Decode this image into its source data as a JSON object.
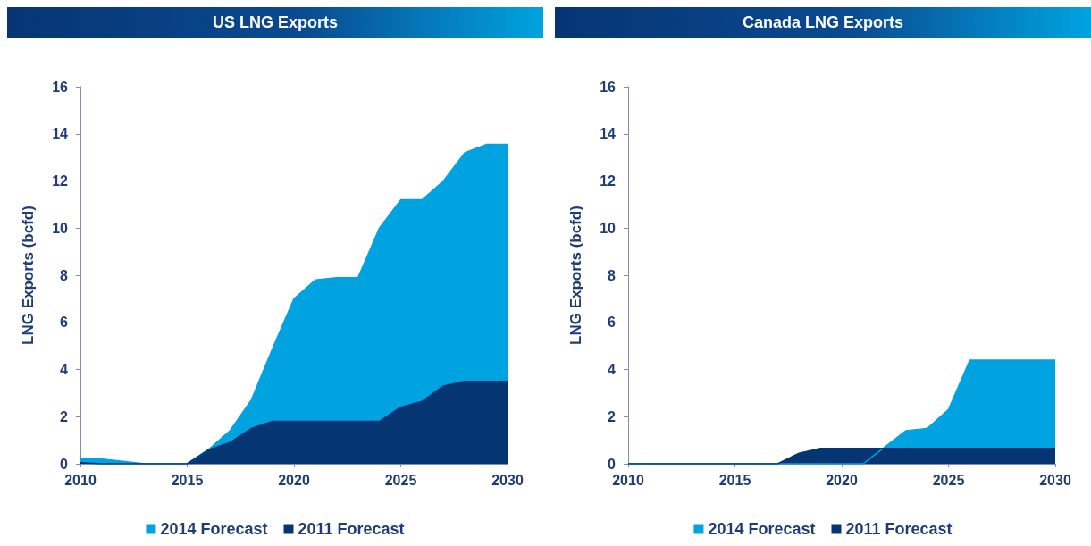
{
  "chart_data": [
    {
      "type": "area",
      "title": "US LNG Exports",
      "ylabel": "LNG Exports (bcfd)",
      "x": [
        2010,
        2011,
        2012,
        2013,
        2014,
        2015,
        2016,
        2017,
        2018,
        2019,
        2020,
        2021,
        2022,
        2023,
        2024,
        2025,
        2026,
        2027,
        2028,
        2029,
        2030
      ],
      "xlim": [
        2010,
        2030
      ],
      "xticks": [
        2010,
        2015,
        2020,
        2025,
        2030
      ],
      "ylim": [
        0,
        16
      ],
      "yticks": [
        0,
        2,
        4,
        6,
        8,
        10,
        12,
        14,
        16
      ],
      "grid": false,
      "legend": "bottom",
      "series": [
        {
          "name": "2014 Forecast",
          "color": "#00a3e0",
          "values": [
            0.2,
            0.2,
            0.1,
            0,
            0,
            0,
            0.6,
            1.4,
            2.7,
            4.9,
            7.0,
            7.8,
            7.9,
            7.9,
            10.0,
            11.2,
            11.2,
            12.0,
            13.2,
            13.55,
            13.55
          ]
        },
        {
          "name": "2011 Forecast",
          "color": "#063574",
          "values": [
            0.05,
            0,
            0,
            0,
            0,
            0,
            0.6,
            0.9,
            1.5,
            1.8,
            1.8,
            1.8,
            1.8,
            1.8,
            1.8,
            2.4,
            2.65,
            3.3,
            3.5,
            3.5,
            3.5
          ]
        }
      ]
    },
    {
      "type": "area",
      "title": "Canada LNG Exports",
      "ylabel": "LNG Exports (bcfd)",
      "x": [
        2010,
        2011,
        2012,
        2013,
        2014,
        2015,
        2016,
        2017,
        2018,
        2019,
        2020,
        2021,
        2022,
        2023,
        2024,
        2025,
        2026,
        2027,
        2028,
        2029,
        2030
      ],
      "xlim": [
        2010,
        2030
      ],
      "xticks": [
        2010,
        2015,
        2020,
        2025,
        2030
      ],
      "ylim": [
        0,
        16
      ],
      "yticks": [
        0,
        2,
        4,
        6,
        8,
        10,
        12,
        14,
        16
      ],
      "grid": false,
      "legend": "bottom",
      "series": [
        {
          "name": "2014 Forecast",
          "color": "#00a3e0",
          "values": [
            0,
            0,
            0,
            0,
            0,
            0,
            0,
            0,
            0,
            0,
            0,
            0,
            0.7,
            1.4,
            1.5,
            2.3,
            4.4,
            4.4,
            4.4,
            4.4,
            4.4
          ]
        },
        {
          "name": "2011 Forecast",
          "color": "#063574",
          "values": [
            0,
            0,
            0,
            0,
            0,
            0,
            0,
            0,
            0.45,
            0.65,
            0.65,
            0.65,
            0.65,
            0.65,
            0.65,
            0.65,
            0.65,
            0.65,
            0.65,
            0.65,
            0.65
          ]
        }
      ]
    }
  ]
}
